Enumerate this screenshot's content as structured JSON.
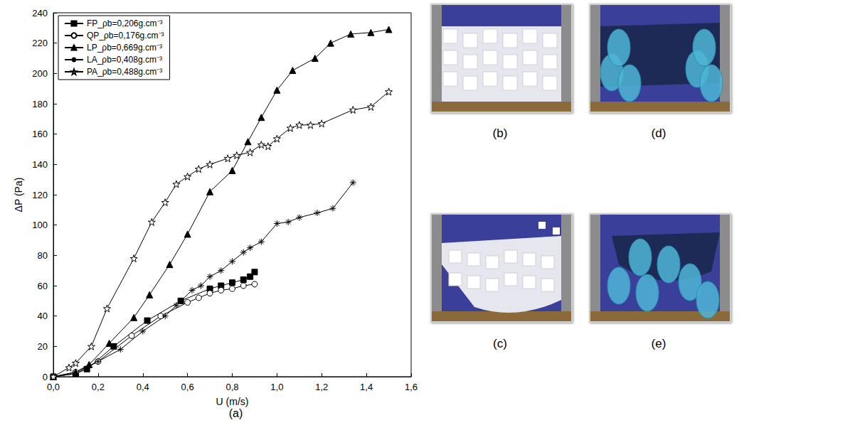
{
  "chart_data": {
    "type": "line",
    "panel_label": "(a)",
    "x_label": "U (m/s)",
    "y_label": "ΔP (Pa)",
    "xlim": [
      0,
      1.6
    ],
    "xticks": [
      {
        "value": 0,
        "label": "0,0"
      },
      {
        "value": 0.2,
        "label": "0,2"
      },
      {
        "value": 0.4,
        "label": "0,4"
      },
      {
        "value": 0.6,
        "label": "0,6"
      },
      {
        "value": 0.8,
        "label": "0,8"
      },
      {
        "value": 1.0,
        "label": "1,0"
      },
      {
        "value": 1.2,
        "label": "1,2"
      },
      {
        "value": 1.4,
        "label": "1,4"
      },
      {
        "value": 1.6,
        "label": "1,6"
      }
    ],
    "ylim": [
      0,
      240
    ],
    "yticks": [
      0,
      20,
      40,
      60,
      80,
      100,
      120,
      140,
      160,
      180,
      200,
      220,
      240
    ],
    "grid": false,
    "legend": "top-left",
    "series": [
      {
        "name": "FP_ρb=0,206g.cm⁻³",
        "marker": "filled_square",
        "color": "#000000",
        "x": [
          0,
          0.1,
          0.15,
          0.27,
          0.42,
          0.57,
          0.7,
          0.75,
          0.8,
          0.85,
          0.88,
          0.9
        ],
        "values": [
          0,
          2,
          5,
          20,
          37,
          50,
          58,
          60,
          62,
          64,
          66,
          69
        ]
      },
      {
        "name": "QP_ρb=0,176g.cm⁻³",
        "marker": "open_circle",
        "color": "#000000",
        "x": [
          0,
          0.1,
          0.2,
          0.35,
          0.48,
          0.6,
          0.65,
          0.7,
          0.75,
          0.8,
          0.85,
          0.9
        ],
        "values": [
          0,
          3,
          10,
          27,
          40,
          49,
          52,
          55,
          57,
          58,
          60,
          61
        ]
      },
      {
        "name": "LP_ρb=0,669g.cm⁻³",
        "marker": "filled_triangle",
        "color": "#000000",
        "x": [
          0,
          0.1,
          0.16,
          0.25,
          0.36,
          0.43,
          0.52,
          0.6,
          0.7,
          0.8,
          0.87,
          0.93,
          1.0,
          1.07,
          1.17,
          1.24,
          1.33,
          1.42,
          1.5
        ],
        "values": [
          0,
          3,
          8,
          22,
          39,
          54,
          74,
          94,
          122,
          136,
          155,
          171,
          189,
          202,
          210,
          220,
          226,
          227,
          229
        ]
      },
      {
        "name": "LA_ρb=0,408g.cm⁻³",
        "marker": "asterisk",
        "color": "#000000",
        "x": [
          0,
          0.1,
          0.2,
          0.3,
          0.4,
          0.5,
          0.55,
          0.62,
          0.66,
          0.7,
          0.75,
          0.8,
          0.85,
          0.88,
          0.93,
          1.0,
          1.05,
          1.1,
          1.18,
          1.25,
          1.34
        ],
        "values": [
          0,
          2,
          10,
          18,
          30,
          40,
          47,
          57,
          60,
          66,
          70,
          76,
          82,
          85,
          89,
          101,
          102,
          105,
          108,
          111,
          128
        ]
      },
      {
        "name": "PA_ρb=0,488g.cm⁻³",
        "marker": "open_star",
        "color": "#000000",
        "x": [
          0,
          0.07,
          0.1,
          0.17,
          0.24,
          0.36,
          0.44,
          0.5,
          0.55,
          0.6,
          0.65,
          0.7,
          0.78,
          0.82,
          0.88,
          0.93,
          0.96,
          1.0,
          1.06,
          1.1,
          1.15,
          1.2,
          1.34,
          1.42,
          1.5
        ],
        "values": [
          0,
          6,
          9,
          20,
          45,
          78,
          102,
          115,
          127,
          132,
          137,
          140,
          144,
          146,
          148,
          153,
          152,
          157,
          164,
          166,
          166,
          167,
          176,
          178,
          188
        ]
      }
    ]
  },
  "photo_panels": [
    {
      "label": "(b)"
    },
    {
      "label": "(c)"
    },
    {
      "label": "(d)"
    },
    {
      "label": "(e)"
    }
  ]
}
